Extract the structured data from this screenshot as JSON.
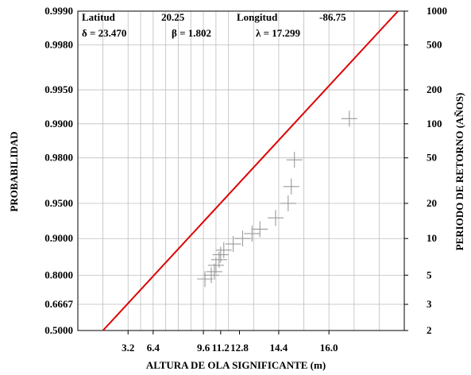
{
  "chart_data": {
    "type": "scatter",
    "title": "",
    "xlabel": "ALTURA DE OLA SIGNIFICANTE (m)",
    "ylabel": "PROBABILIDAD",
    "y2label": "PERIODO DE RETORNO (AÑOS)",
    "x_ticks": [
      "3.2",
      "6.4",
      "9.6",
      "11.2",
      "12.8",
      "14.4",
      "16.0"
    ],
    "y_ticks": [
      "0.5000",
      "0.6667",
      "0.8000",
      "0.9000",
      "0.9500",
      "0.9800",
      "0.9900",
      "0.9950",
      "0.9980",
      "0.9990"
    ],
    "y2_ticks": [
      "2",
      "3",
      "5",
      "10",
      "20",
      "50",
      "100",
      "200",
      "500",
      "1000"
    ],
    "info": {
      "lat_label": "Latitud",
      "lat_value": "20.25",
      "lon_label": "Longitud",
      "lon_value": "-86.75",
      "delta": "δ = 23.470",
      "beta": "β = 1.802",
      "lambda": "λ = 17.299"
    },
    "grid": true,
    "line_color": "#dd0000",
    "marker_color": "#9a9a9a",
    "marker": "cross",
    "fit_line": {
      "x": [
        0.0,
        18.8
      ],
      "p": [
        0.5,
        0.999
      ]
    },
    "points": [
      {
        "x": 6.5,
        "p": 0.7857
      },
      {
        "x": 6.9,
        "p": 0.8
      },
      {
        "x": 7.1,
        "p": 0.8125
      },
      {
        "x": 7.2,
        "p": 0.8333
      },
      {
        "x": 7.4,
        "p": 0.85
      },
      {
        "x": 7.5,
        "p": 0.8636
      },
      {
        "x": 7.7,
        "p": 0.875
      },
      {
        "x": 8.3,
        "p": 0.8889
      },
      {
        "x": 8.9,
        "p": 0.9
      },
      {
        "x": 9.5,
        "p": 0.9091
      },
      {
        "x": 10.0,
        "p": 0.9167
      },
      {
        "x": 11.0,
        "p": 0.9333
      },
      {
        "x": 11.8,
        "p": 0.95
      },
      {
        "x": 12.0,
        "p": 0.9643
      },
      {
        "x": 12.2,
        "p": 0.9792
      },
      {
        "x": 15.7,
        "p": 0.991
      }
    ]
  }
}
